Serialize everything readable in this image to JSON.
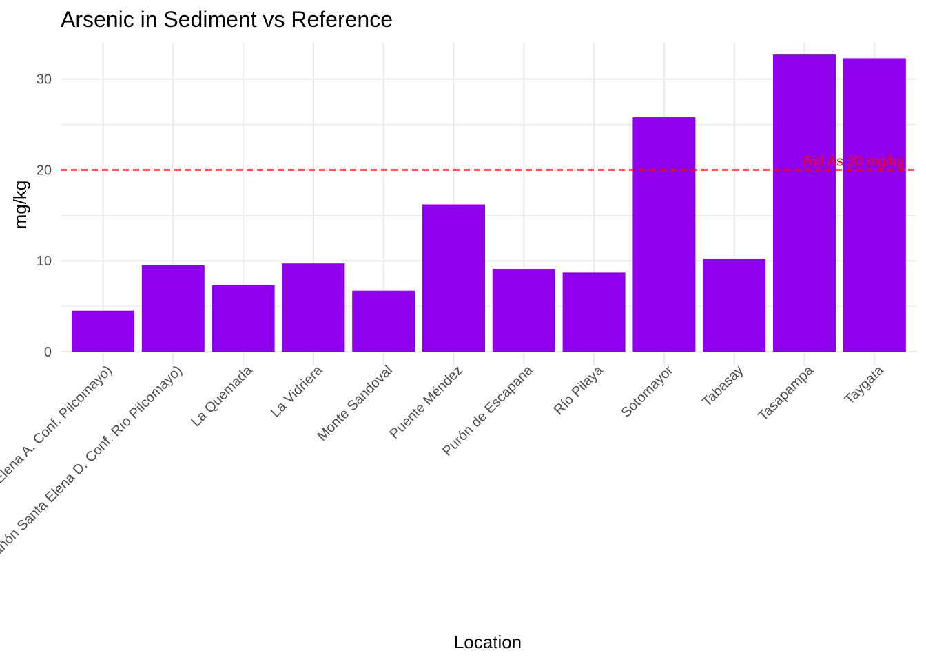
{
  "chart_data": {
    "type": "bar",
    "title": "Arsenic in Sediment vs Reference",
    "xlabel": "Location",
    "ylabel": "mg/kg",
    "categories": [
      "Cañón Santa Elena A. Conf. Pilcomayo)",
      "Cañón Santa Elena D. Conf. Río Pilcomayo)",
      "La Quemada",
      "La Vidriera",
      "Monte Sandoval",
      "Puente Méndez",
      "Purón de Escapana",
      "Río Pilaya",
      "Sotomayor",
      "Tabasay",
      "Tasapampa",
      "Taygata"
    ],
    "values": [
      4.5,
      9.5,
      7.3,
      9.7,
      6.7,
      16.2,
      9.1,
      8.7,
      25.8,
      10.2,
      32.7,
      32.3
    ],
    "ylim": [
      0,
      34
    ],
    "yticks": [
      0,
      10,
      20,
      30
    ],
    "grid": true,
    "bar_color": "#8e00ee",
    "reference_line": {
      "value": 20,
      "label": "Ref As 20 mg/kg",
      "color": "#ff0000",
      "style": "dashed"
    }
  }
}
